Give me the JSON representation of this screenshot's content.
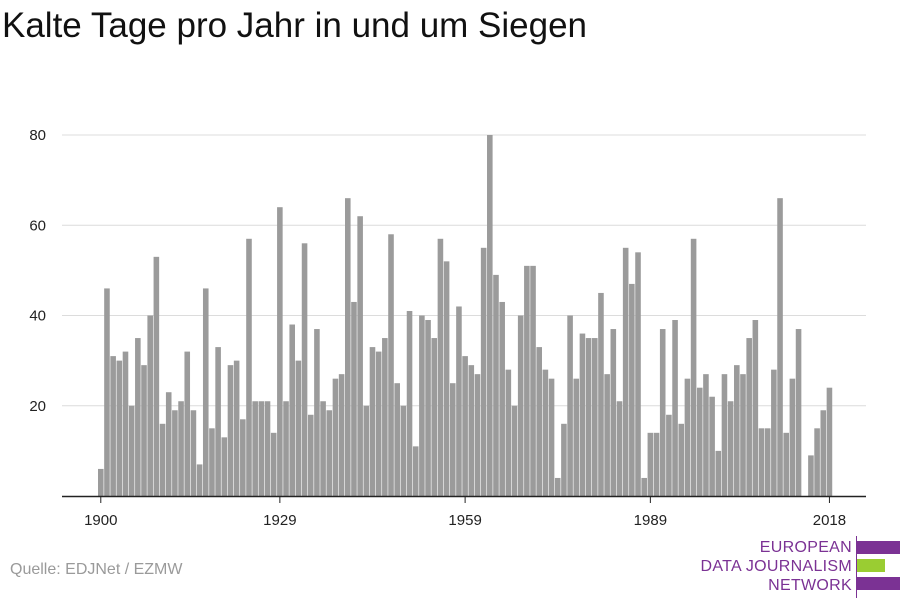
{
  "chart_data": {
    "type": "bar",
    "title": "Kalte Tage pro Jahr in und um Siegen",
    "xlabel": "",
    "ylabel": "",
    "x_ticks": [
      "1900",
      "1929",
      "1959",
      "1989",
      "2018"
    ],
    "y_ticks": [
      20,
      40,
      60,
      80
    ],
    "ylim": [
      0,
      84
    ],
    "xlim": [
      1898,
      2025
    ],
    "grid": true,
    "bar_color": "#9b9b9b",
    "series": [
      {
        "x_start": 1900,
        "values": [
          6,
          46,
          31,
          30,
          32,
          20,
          35,
          29,
          40,
          53,
          16,
          23,
          19,
          21,
          32,
          19,
          7,
          46,
          15,
          33,
          13,
          29,
          30,
          17,
          57,
          21,
          21,
          21,
          14,
          64,
          21,
          38,
          30,
          56,
          18,
          37,
          21,
          19,
          26,
          27,
          66,
          43,
          62,
          20,
          33,
          32,
          35,
          58,
          25,
          20,
          41,
          11,
          40,
          39,
          35,
          57,
          52,
          25,
          42,
          31,
          29,
          27,
          55,
          80,
          49,
          43,
          28,
          20,
          40,
          51,
          51,
          33,
          28,
          26,
          4,
          16,
          40,
          26,
          36,
          35,
          35,
          45,
          27,
          37,
          21,
          55,
          47,
          54,
          4,
          14,
          14,
          37,
          18,
          39,
          16,
          26,
          57,
          24,
          27,
          22,
          10,
          27,
          21,
          29,
          27,
          35,
          39,
          15,
          15,
          28,
          66,
          14,
          26,
          37,
          0,
          9,
          15,
          19,
          24
        ]
      }
    ]
  },
  "source": "Quelle: EDJNet / EZMW",
  "logo": {
    "line1": "EUROPEAN",
    "line2": "DATA JOURNALISM",
    "line3": "NETWORK",
    "purple": "#7b3294",
    "green": "#9acd32"
  }
}
